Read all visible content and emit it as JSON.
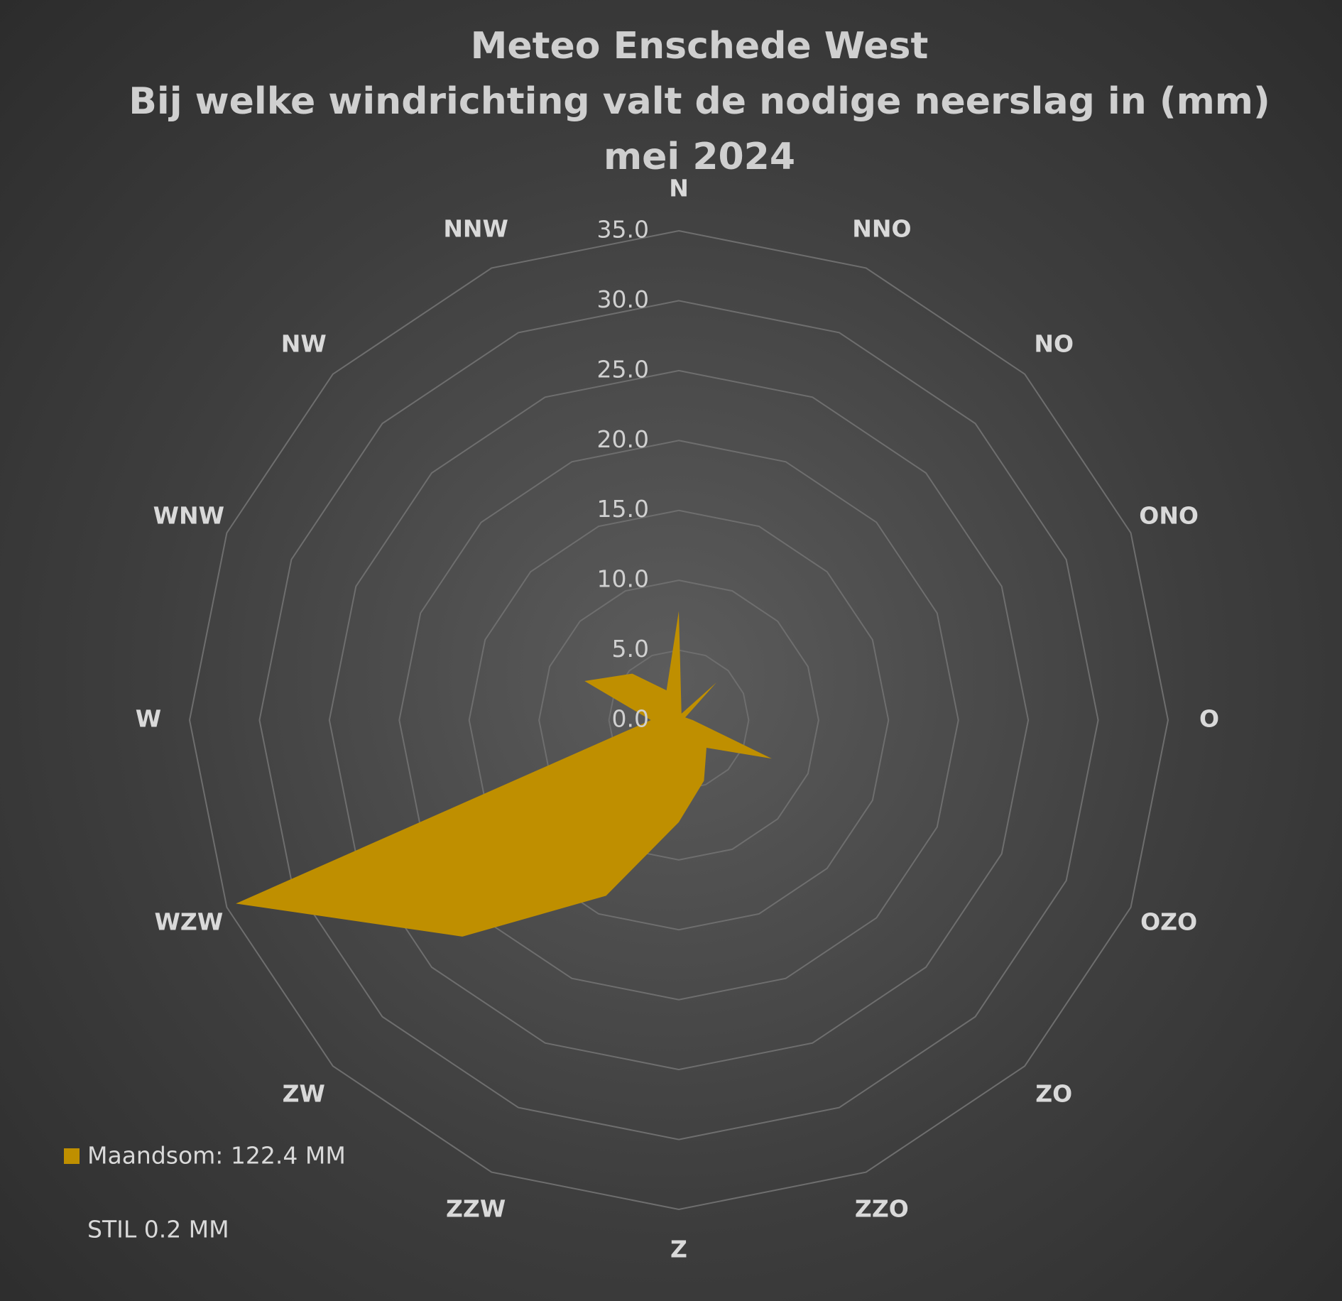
{
  "chart_data": {
    "type": "radar",
    "title": [
      "Meteo Enschede West",
      "Bij welke windrichting valt de nodige neerslag in (mm)",
      "mei 2024"
    ],
    "categories": [
      "N",
      "NNO",
      "NO",
      "ONO",
      "O",
      "OZO",
      "ZO",
      "ZZO",
      "Z",
      "ZZW",
      "ZW",
      "WZW",
      "W",
      "WNW",
      "NW",
      "NNW"
    ],
    "series": [
      {
        "name": "Maandsom: 122.4 MM",
        "color": "#bf8f00",
        "values": [
          7.8,
          0.5,
          3.8,
          0.5,
          1.0,
          7.2,
          2.8,
          4.7,
          7.3,
          13.6,
          21.9,
          34.3,
          2.0,
          7.3,
          4.7,
          2.3
        ]
      }
    ],
    "rlim": [
      0,
      35
    ],
    "rticks": [
      {
        "value": 0,
        "label": "0.0"
      },
      {
        "value": 5,
        "label": "5.0"
      },
      {
        "value": 10,
        "label": "10.0"
      },
      {
        "value": 15,
        "label": "15.0"
      },
      {
        "value": 20,
        "label": "20.0"
      },
      {
        "value": 25,
        "label": "25.0"
      },
      {
        "value": 30,
        "label": "30.0"
      },
      {
        "value": 35,
        "label": "35.0"
      }
    ],
    "annotation": "STIL 0.2 MM",
    "grid": true,
    "legend": "bottom-left"
  }
}
